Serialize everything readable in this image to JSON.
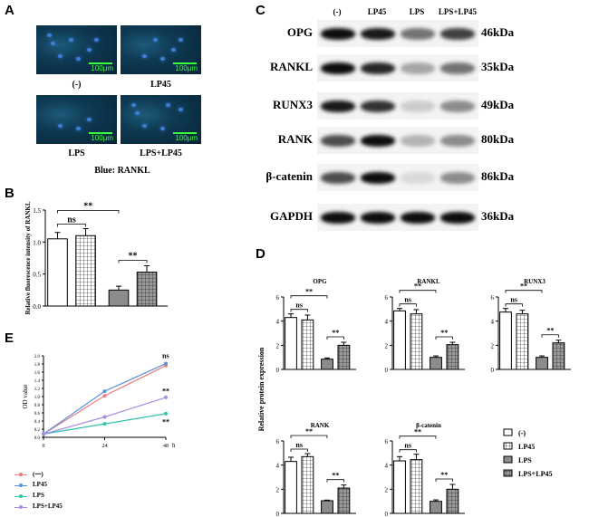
{
  "panels": {
    "A": "A",
    "B": "B",
    "C": "C",
    "D": "D",
    "E": "E"
  },
  "panelA": {
    "images": [
      {
        "label": "(-)",
        "scale": "100μm"
      },
      {
        "label": "LP45",
        "scale": "100μm"
      },
      {
        "label": "LPS",
        "scale": "100μm"
      },
      {
        "label": "LPS+LP45",
        "scale": "100μm"
      }
    ],
    "stain_caption": "Blue: RANKL",
    "colors": {
      "background": "#0b3146",
      "nuclei": "#3d7fd8",
      "scale": "#3cff3c"
    }
  },
  "panelC": {
    "lanes": [
      "(-)",
      "LP45",
      "LPS",
      "LPS+LP45"
    ],
    "rows": [
      {
        "protein": "OPG",
        "kda": "46kDa",
        "intensity": [
          0.95,
          0.9,
          0.55,
          0.75
        ]
      },
      {
        "protein": "RANKL",
        "kda": "35kDa",
        "intensity": [
          0.95,
          0.85,
          0.35,
          0.55
        ]
      },
      {
        "protein": "RUNX3",
        "kda": "49kDa",
        "intensity": [
          0.9,
          0.8,
          0.2,
          0.45
        ]
      },
      {
        "protein": "RANK",
        "kda": "80kDa",
        "intensity": [
          0.7,
          0.95,
          0.3,
          0.45
        ]
      },
      {
        "protein": "β-catenin",
        "kda": "86kDa",
        "intensity": [
          0.7,
          0.95,
          0.15,
          0.45
        ]
      },
      {
        "protein": "GAPDH",
        "kda": "36kDa",
        "intensity": [
          0.95,
          0.95,
          0.95,
          0.95
        ]
      }
    ]
  },
  "chart_data": [
    {
      "id": "B",
      "type": "bar",
      "ylabel": "Relative fluorescence intensity of RANKL",
      "ylim": [
        0,
        1.5
      ],
      "yticks": [
        "0.0",
        "0.5",
        "1.0",
        "1.5"
      ],
      "categories": [
        "(-)",
        "LP45",
        "LPS",
        "LPS+LP45"
      ],
      "values": [
        1.05,
        1.1,
        0.25,
        0.53
      ],
      "errors": [
        0.1,
        0.11,
        0.06,
        0.1
      ],
      "sig": {
        "ns": "ns",
        "star": "**"
      }
    },
    {
      "id": "D",
      "type": "bar",
      "ylabel": "Relative protein expression",
      "categories": [
        "(-)",
        "LP45",
        "LPS",
        "LPS+LP45"
      ],
      "legend": [
        "(-)",
        "LP45",
        "LPS",
        "LPS+LP45"
      ],
      "sig": {
        "ns": "ns",
        "star": "**"
      },
      "subplots": [
        {
          "title": "OPG",
          "ylim": [
            0,
            6
          ],
          "yticks": [
            "0",
            "2",
            "4",
            "6"
          ],
          "values": [
            4.3,
            4.1,
            0.85,
            2.0
          ],
          "errors": [
            0.3,
            0.4,
            0.1,
            0.25
          ]
        },
        {
          "title": "RANKL",
          "ylim": [
            0,
            6
          ],
          "yticks": [
            "0",
            "2",
            "4",
            "6"
          ],
          "values": [
            4.85,
            4.6,
            1.0,
            2.05
          ],
          "errors": [
            0.2,
            0.35,
            0.12,
            0.2
          ]
        },
        {
          "title": "RUNX3",
          "ylim": [
            0,
            6
          ],
          "yticks": [
            "0",
            "2",
            "4",
            "6"
          ],
          "values": [
            4.75,
            4.6,
            1.0,
            2.2
          ],
          "errors": [
            0.3,
            0.3,
            0.12,
            0.22
          ]
        },
        {
          "title": "RANK",
          "ylim": [
            0,
            6
          ],
          "yticks": [
            "0",
            "2",
            "4",
            "6"
          ],
          "values": [
            4.3,
            4.7,
            1.05,
            2.1
          ],
          "errors": [
            0.35,
            0.25,
            0.05,
            0.25
          ]
        },
        {
          "title": "β-catenin",
          "ylim": [
            0,
            6
          ],
          "yticks": [
            "0",
            "2",
            "4",
            "6"
          ],
          "values": [
            4.35,
            4.45,
            1.0,
            2.0
          ],
          "errors": [
            0.35,
            0.45,
            0.12,
            0.4
          ]
        }
      ]
    },
    {
      "id": "E",
      "type": "line",
      "ylabel": "OD value",
      "ylim": [
        0,
        2.0
      ],
      "yticks": [
        "0.0",
        "0.2",
        "0.4",
        "0.6",
        "0.8",
        "1.0",
        "1.2",
        "1.4",
        "1.6",
        "1.8",
        "2.0"
      ],
      "x": [
        0,
        24,
        48
      ],
      "xticks": [
        "0",
        "24",
        "48"
      ],
      "xunit": "h",
      "series": [
        {
          "name": "(一)",
          "color": "#ef7b7b",
          "values": [
            0.08,
            1.02,
            1.76
          ]
        },
        {
          "name": "LP45",
          "color": "#5b8fe0",
          "values": [
            0.08,
            1.13,
            1.81
          ]
        },
        {
          "name": "LPS",
          "color": "#2ec4a5",
          "values": [
            0.08,
            0.33,
            0.58
          ]
        },
        {
          "name": "LPS+LP45",
          "color": "#a98be0",
          "values": [
            0.08,
            0.5,
            0.98
          ]
        }
      ],
      "annotations": [
        "ns",
        "**",
        "**"
      ]
    }
  ]
}
